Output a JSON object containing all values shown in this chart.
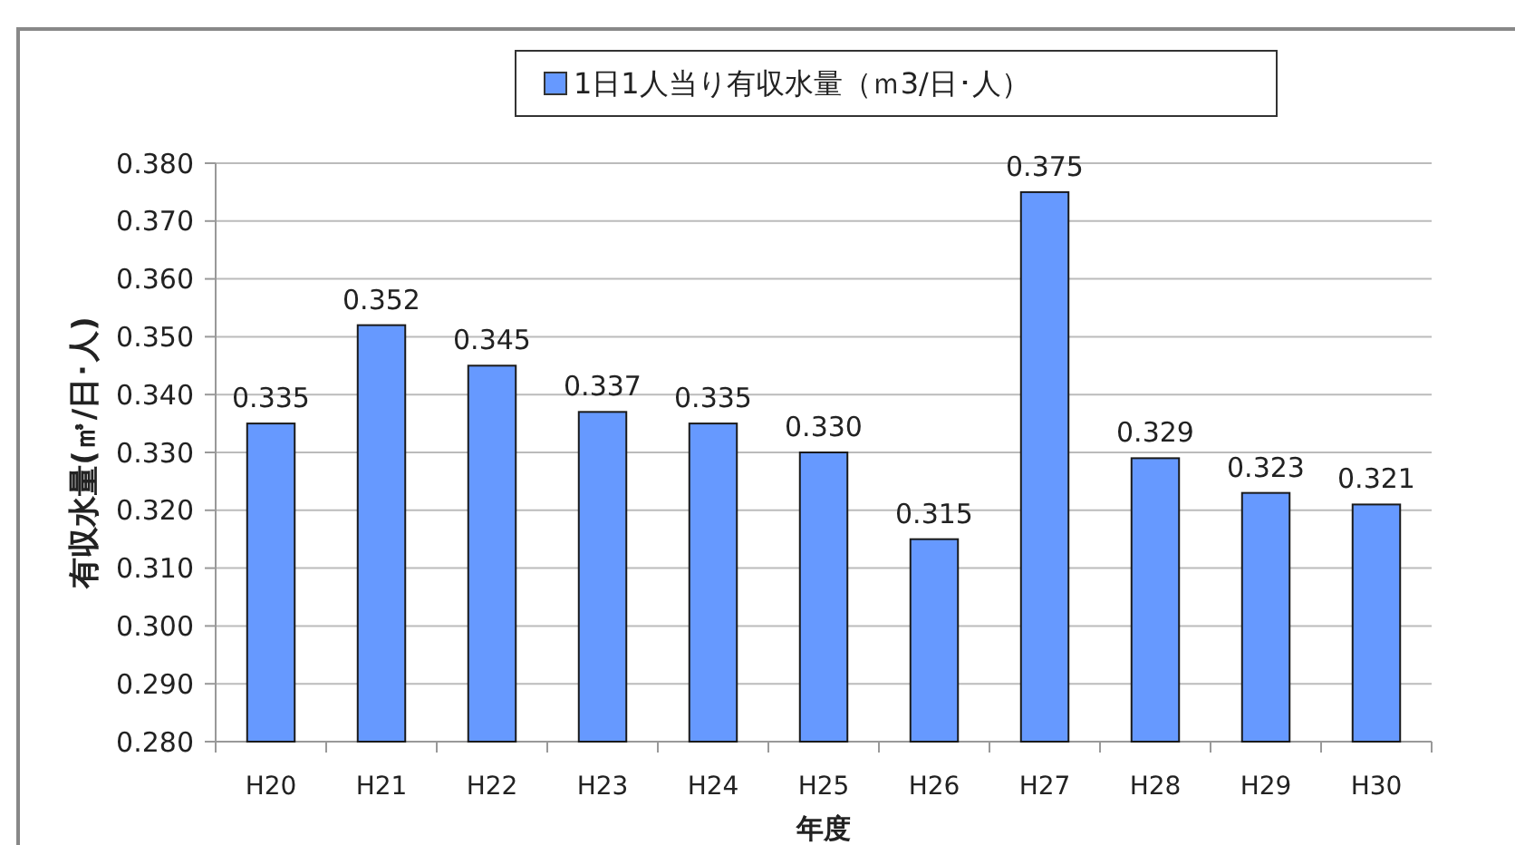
{
  "chart_data": {
    "type": "bar",
    "xlabel": "年度",
    "ylabel": "有収水量(㎥/日･人)",
    "categories": [
      "H20",
      "H21",
      "H22",
      "H23",
      "H24",
      "H25",
      "H26",
      "H27",
      "H28",
      "H29",
      "H30"
    ],
    "series": [
      {
        "name": "1日1人当り有収水量（ｍ3/日･人）",
        "color": "#6699ff",
        "values": [
          0.335,
          0.352,
          0.345,
          0.337,
          0.335,
          0.33,
          0.315,
          0.375,
          0.329,
          0.323,
          0.321
        ],
        "value_labels": [
          "0.335",
          "0.352",
          "0.345",
          "0.337",
          "0.335",
          "0.330",
          "0.315",
          "0.375",
          "0.329",
          "0.323",
          "0.321"
        ]
      }
    ],
    "ylim": [
      0.28,
      0.38
    ],
    "yticks": [
      {
        "value": 0.28,
        "label": "0.280"
      },
      {
        "value": 0.29,
        "label": "0.290"
      },
      {
        "value": 0.3,
        "label": "0.300"
      },
      {
        "value": 0.31,
        "label": "0.310"
      },
      {
        "value": 0.32,
        "label": "0.320"
      },
      {
        "value": 0.33,
        "label": "0.330"
      },
      {
        "value": 0.34,
        "label": "0.340"
      },
      {
        "value": 0.35,
        "label": "0.350"
      },
      {
        "value": 0.36,
        "label": "0.360"
      },
      {
        "value": 0.37,
        "label": "0.370"
      },
      {
        "value": 0.38,
        "label": "0.380"
      }
    ],
    "grid": "y",
    "legend": "top"
  }
}
